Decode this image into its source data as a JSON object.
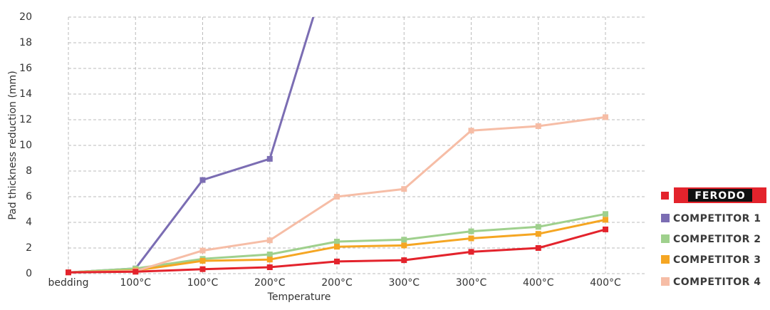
{
  "chart_data": {
    "type": "line",
    "xlabel": "Temperature",
    "ylabel": "Pad thickness reduction (mm)",
    "categories": [
      "bedding",
      "100°C",
      "100°C",
      "200°C",
      "200°C",
      "300°C",
      "300°C",
      "400°C",
      "400°C"
    ],
    "ylim": [
      0,
      20
    ],
    "yticks": [
      0,
      2,
      4,
      6,
      8,
      10,
      12,
      14,
      16,
      18,
      20
    ],
    "grid": true,
    "legend": "right",
    "series": [
      {
        "name": "FERODO",
        "color": "#e3232c",
        "values": [
          0.1,
          0.15,
          0.35,
          0.5,
          0.95,
          1.05,
          1.7,
          2.0,
          3.45
        ]
      },
      {
        "name": "COMPETITOR 1",
        "color": "#7b6db3",
        "values": [
          0.1,
          0.4,
          7.3,
          8.95,
          26,
          null,
          null,
          null,
          null
        ]
      },
      {
        "name": "COMPETITOR 2",
        "color": "#9fd08d",
        "values": [
          0.1,
          0.4,
          1.15,
          1.5,
          2.5,
          2.65,
          3.3,
          3.65,
          4.65
        ]
      },
      {
        "name": "COMPETITOR 3",
        "color": "#f5a623",
        "values": [
          0.1,
          0.25,
          1.0,
          1.1,
          2.1,
          2.2,
          2.75,
          3.1,
          4.2
        ]
      },
      {
        "name": "COMPETITOR 4",
        "color": "#f6bda6",
        "values": [
          0.1,
          0.2,
          1.8,
          2.6,
          6.0,
          6.6,
          11.15,
          11.5,
          12.2
        ]
      }
    ]
  }
}
